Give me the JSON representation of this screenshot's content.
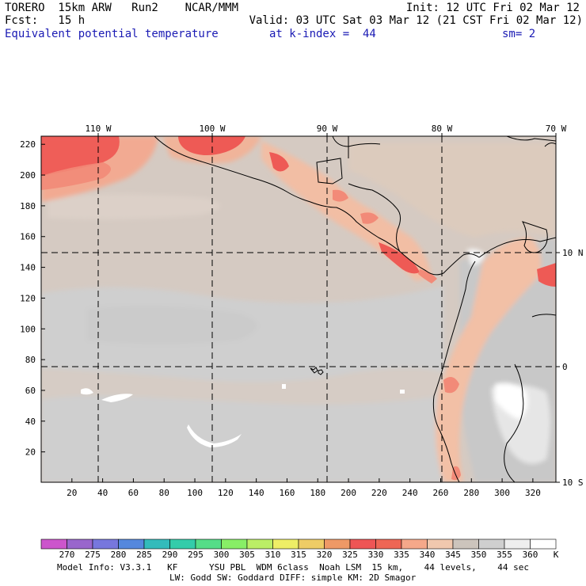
{
  "header": {
    "line1_left": "TORERO  15km ARW   Run2    NCAR/MMM",
    "line1_right": "Init: 12 UTC Fri 02 Mar 12",
    "line2_left": "Fcst:   15 h",
    "line2_right": "Valid: 03 UTC Sat 03 Mar 12 (21 CST Fri 02 Mar 12)",
    "line3_field": "Equivalent potential temperature",
    "line3_level": "at k-index =  44",
    "line3_sm": "sm= 2"
  },
  "map": {
    "top_lon_labels": [
      "110 W",
      "100 W",
      "90 W",
      "80 W",
      "70 W"
    ],
    "right_lat_labels": [
      "10 N",
      "0",
      "10 S"
    ],
    "left_y_ticks": [
      "220",
      "200",
      "180",
      "160",
      "140",
      "120",
      "100",
      "80",
      "60",
      "40",
      "20"
    ],
    "bottom_x_ticks": [
      "20",
      "40",
      "60",
      "80",
      "100",
      "120",
      "140",
      "160",
      "180",
      "200",
      "220",
      "240",
      "260",
      "280",
      "300",
      "320"
    ]
  },
  "colorbar": {
    "labels": [
      "270",
      "275",
      "280",
      "285",
      "290",
      "295",
      "300",
      "305",
      "310",
      "315",
      "320",
      "325",
      "330",
      "335",
      "340",
      "345",
      "350",
      "355",
      "360"
    ],
    "unit": "K",
    "colors": [
      "#cc55cc",
      "#9966cc",
      "#7777dd",
      "#5588dd",
      "#33bbbb",
      "#33ccaa",
      "#55dd88",
      "#88ee66",
      "#bbee66",
      "#eeee66",
      "#eecc66",
      "#ee9966",
      "#ee5555",
      "#ee6655",
      "#f5a88a",
      "#f0c8ae",
      "#ccc4bc",
      "#cfcfcf",
      "#eeeeee",
      "#ffffff"
    ]
  },
  "footer": {
    "line1": "Model Info: V3.3.1   KF      YSU PBL  WDM 6class  Noah LSM  15 km,    44 levels,    44 sec",
    "line2": "LW: Godd SW: Goddard DIFF: simple KM: 2D Smagor"
  }
}
